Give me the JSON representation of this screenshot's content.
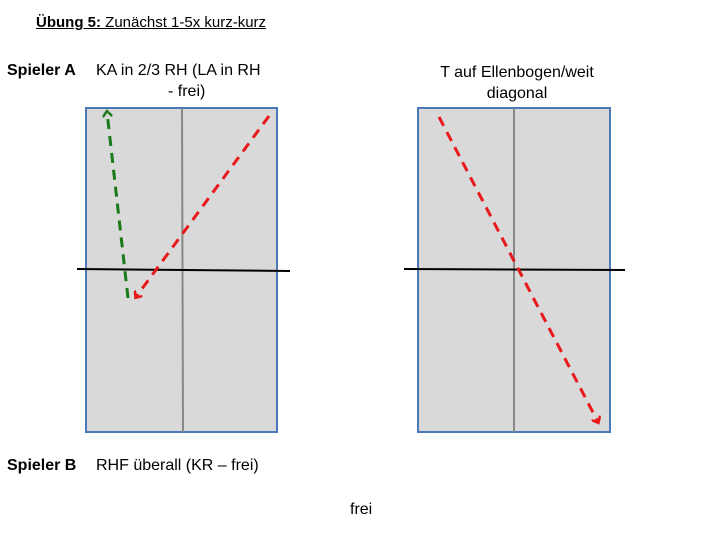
{
  "title": {
    "prefix": "Übung 5:",
    "text": "Zunächst 1-5x kurz-kurz"
  },
  "player_a": {
    "name": "Spieler A",
    "left_line1": "KA in 2/3 RH (LA in RH",
    "left_line2": "- frei)",
    "right_line1": "T auf Ellenbogen/weit",
    "right_line2": "diagonal"
  },
  "player_b": {
    "name": "Spieler B",
    "text": "RHF überall (KR – frei)"
  },
  "footer": "frei",
  "colors": {
    "table_fill": "#d9d9d9",
    "table_border": "#4a78b8",
    "center_line": "#888888",
    "net": "#000000",
    "arrow_green": "#1a7a1a",
    "arrow_red": "#e8191b"
  }
}
